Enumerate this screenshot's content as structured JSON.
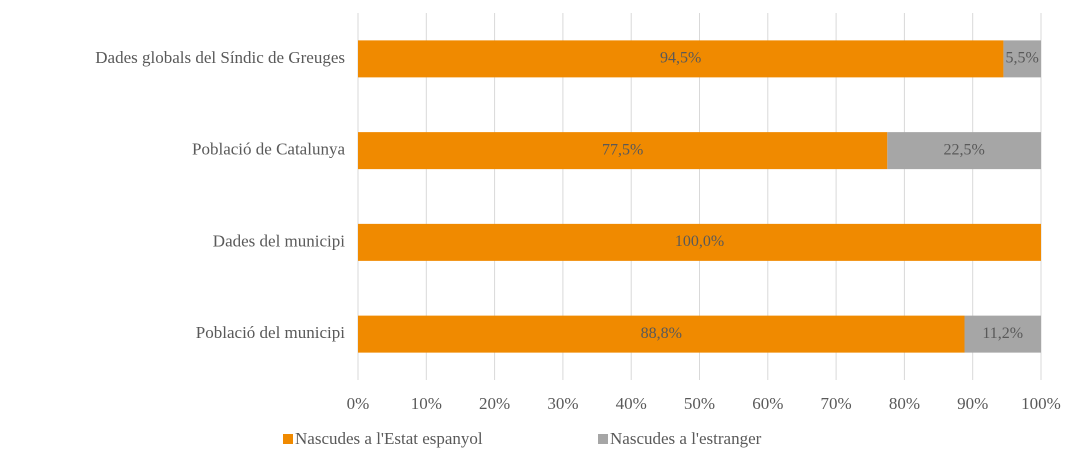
{
  "chart_data": {
    "type": "stacked-bar-horizontal",
    "categories": [
      "Dades globals del Síndic de Greuges",
      "Població de Catalunya",
      "Dades del municipi",
      "Població del municipi"
    ],
    "series": [
      {
        "name": "Nascudes a l'Estat espanyol",
        "color": "#f08a00",
        "values": [
          94.5,
          77.5,
          100,
          88.8
        ],
        "value_labels": [
          "94,5%",
          "77,5%",
          "100,0%",
          "88,8%"
        ]
      },
      {
        "name": "Nascudes a l'estranger",
        "color": "#a6a6a6",
        "values": [
          5.5,
          22.5,
          0,
          11.2
        ],
        "value_labels": [
          "5,5%",
          "22,5%",
          null,
          "11,2%"
        ]
      }
    ],
    "xlim": [
      0,
      100
    ],
    "xticks": [
      {
        "value": 0,
        "label": "0%"
      },
      {
        "value": 10,
        "label": "10%"
      },
      {
        "value": 20,
        "label": "20%"
      },
      {
        "value": 30,
        "label": "30%"
      },
      {
        "value": 40,
        "label": "40%"
      },
      {
        "value": 50,
        "label": "50%"
      },
      {
        "value": 60,
        "label": "60%"
      },
      {
        "value": 70,
        "label": "70%"
      },
      {
        "value": 80,
        "label": "80%"
      },
      {
        "value": 90,
        "label": "90%"
      },
      {
        "value": 100,
        "label": "100%"
      }
    ],
    "grid": true,
    "legend": "bottom"
  }
}
